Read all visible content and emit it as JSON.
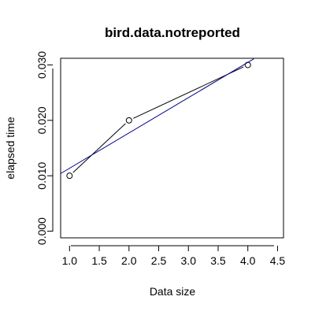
{
  "chart_data": {
    "type": "line",
    "title": "bird.data.notreported",
    "xlabel": "Data size",
    "ylabel": "elapsed time",
    "xlim": [
      0.85,
      4.6
    ],
    "ylim": [
      -0.0012,
      0.0312
    ],
    "x_ticks": [
      "1.0",
      "1.5",
      "2.0",
      "2.5",
      "3.0",
      "3.5",
      "4.0",
      "4.5"
    ],
    "y_ticks": [
      "0.000",
      "0.010",
      "0.020",
      "0.030"
    ],
    "grid": false,
    "series": [
      {
        "style": "points-and-lines",
        "marker": "open-circle",
        "color": "#000000",
        "x": [
          1,
          2,
          4
        ],
        "y": [
          0.01,
          0.02,
          0.03
        ]
      },
      {
        "style": "fit-line",
        "color": "#00008b",
        "x": [
          0.85,
          4.1
        ],
        "y": [
          0.0104,
          0.0311
        ]
      }
    ]
  }
}
